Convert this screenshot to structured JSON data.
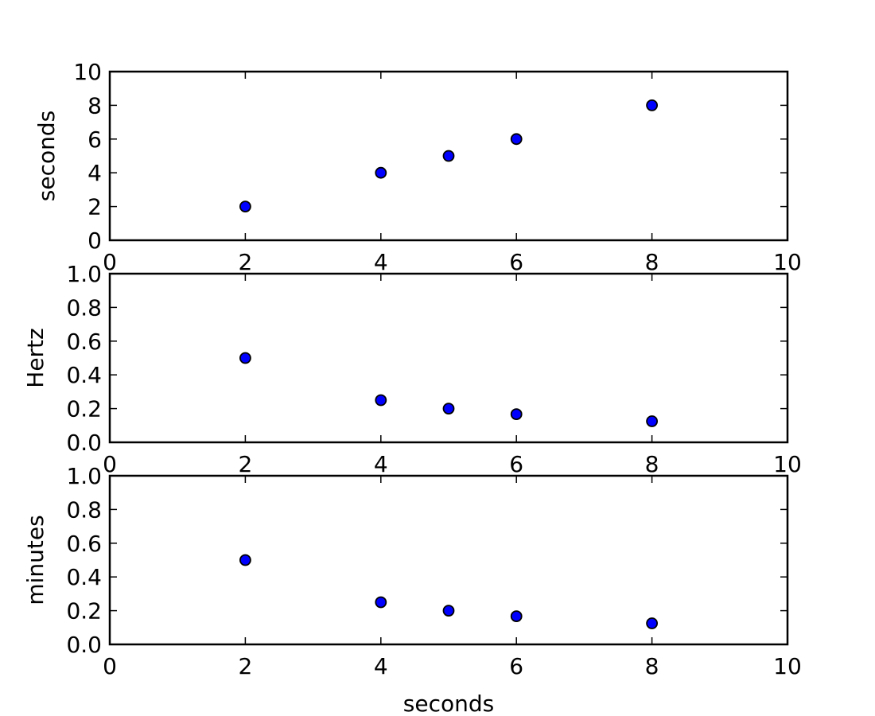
{
  "chart_data": [
    {
      "type": "scatter",
      "xlabel": "",
      "ylabel": "seconds",
      "xlim": [
        0,
        10
      ],
      "ylim": [
        0,
        10
      ],
      "xticks": [
        "0",
        "2",
        "4",
        "6",
        "8",
        "10"
      ],
      "yticks": [
        "0",
        "2",
        "4",
        "6",
        "8",
        "10"
      ],
      "grid": false,
      "marker_color": "#0000ff",
      "x": [
        2,
        4,
        5,
        6,
        8
      ],
      "y": [
        2,
        4,
        5,
        6,
        8
      ]
    },
    {
      "type": "scatter",
      "xlabel": "",
      "ylabel": "Hertz",
      "xlim": [
        0,
        10
      ],
      "ylim": [
        0,
        1.0
      ],
      "xticks": [
        "0",
        "2",
        "4",
        "6",
        "8",
        "10"
      ],
      "yticks": [
        "0.0",
        "0.2",
        "0.4",
        "0.6",
        "0.8",
        "1.0"
      ],
      "grid": false,
      "marker_color": "#0000ff",
      "x": [
        2,
        4,
        5,
        6,
        8
      ],
      "y": [
        0.5,
        0.25,
        0.2,
        0.167,
        0.125
      ]
    },
    {
      "type": "scatter",
      "xlabel": "seconds",
      "ylabel": "minutes",
      "xlim": [
        0,
        10
      ],
      "ylim": [
        0,
        1.0
      ],
      "xticks": [
        "0",
        "2",
        "4",
        "6",
        "8",
        "10"
      ],
      "yticks": [
        "0.0",
        "0.2",
        "0.4",
        "0.6",
        "0.8",
        "1.0"
      ],
      "grid": false,
      "marker_color": "#0000ff",
      "x": [
        2,
        4,
        5,
        6,
        8
      ],
      "y": [
        0.5,
        0.25,
        0.2,
        0.167,
        0.125
      ]
    }
  ]
}
